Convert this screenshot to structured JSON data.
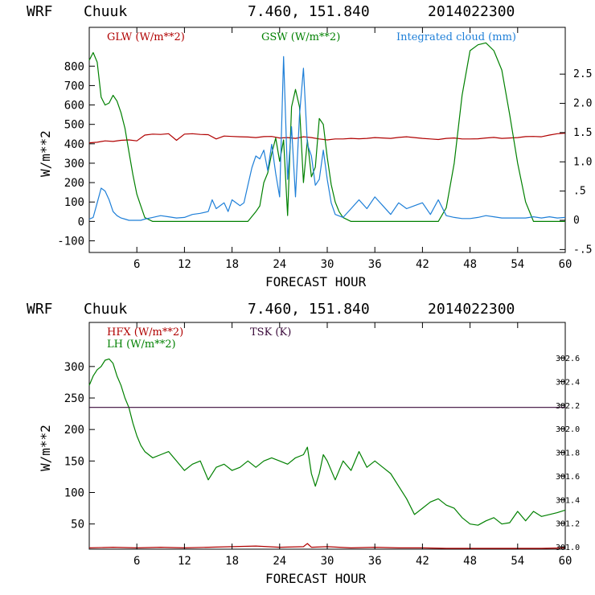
{
  "chart_data": [
    {
      "type": "line",
      "header": {
        "model": "WRF",
        "location": "Chuuk",
        "coords": "7.460, 151.840",
        "init": "2014022300"
      },
      "xlabel": "FORECAST HOUR",
      "ylabel": "W/m**2",
      "xlim": [
        0,
        60
      ],
      "ylim": [
        -160,
        1000
      ],
      "y2lim": [
        -0.55,
        3.3
      ],
      "xticks": [
        6,
        12,
        18,
        24,
        30,
        36,
        42,
        48,
        54,
        60
      ],
      "xtick_labels": [
        "6",
        "12",
        "18",
        "24",
        "30",
        "36",
        "42",
        "48",
        "54",
        "60"
      ],
      "yticks": [
        -100,
        0,
        100,
        200,
        300,
        400,
        500,
        600,
        700,
        800
      ],
      "ytick_labels": [
        "-100",
        "0",
        "100",
        "200",
        "300",
        "400",
        "500",
        "600",
        "700",
        "800"
      ],
      "y2ticks": [
        -0.5,
        0,
        0.5,
        1.0,
        1.5,
        2.0,
        2.5
      ],
      "y2tick_labels": [
        "-.5",
        "0",
        ".5",
        "1.0",
        "1.5",
        "2.0",
        "2.5"
      ],
      "legend": [
        "GLW (W/m**2)",
        "GSW (W/m**2)",
        "Integrated cloud (mm)"
      ],
      "series": [
        {
          "name": "GLW (W/m**2)",
          "color": "#b00000",
          "axis": "left",
          "x": [
            0,
            1,
            2,
            3,
            4,
            5,
            6,
            7,
            8,
            9,
            10,
            11,
            12,
            13,
            14,
            15,
            16,
            17,
            18,
            19,
            20,
            21,
            22,
            23,
            24,
            25,
            26,
            27,
            28,
            29,
            30,
            31,
            32,
            33,
            34,
            35,
            36,
            37,
            38,
            39,
            40,
            41,
            42,
            43,
            44,
            45,
            46,
            47,
            48,
            49,
            50,
            51,
            52,
            53,
            54,
            55,
            56,
            57,
            58,
            59,
            60
          ],
          "y": [
            405,
            408,
            415,
            412,
            418,
            420,
            415,
            445,
            450,
            448,
            452,
            418,
            450,
            452,
            448,
            447,
            425,
            440,
            438,
            436,
            435,
            432,
            437,
            438,
            430,
            432,
            428,
            436,
            432,
            425,
            420,
            425,
            425,
            428,
            426,
            428,
            432,
            430,
            428,
            433,
            436,
            432,
            428,
            425,
            422,
            428,
            430,
            425,
            425,
            426,
            430,
            433,
            428,
            430,
            432,
            437,
            438,
            436,
            445,
            452,
            455
          ]
        },
        {
          "name": "GSW (W/m**2)",
          "color": "#008000",
          "axis": "left",
          "x": [
            0,
            0.5,
            1,
            1.5,
            2,
            2.5,
            3,
            3.5,
            4,
            4.5,
            5,
            5.5,
            6,
            6.5,
            7,
            8,
            9,
            10,
            12,
            14,
            16,
            18,
            19,
            20,
            21,
            21.5,
            22,
            22.5,
            23,
            23.5,
            24,
            24.5,
            25,
            25.5,
            26,
            26.5,
            27,
            27.5,
            28,
            28.5,
            29,
            29.5,
            30,
            30.5,
            31,
            31.5,
            32,
            33,
            34,
            36,
            40,
            42,
            44,
            45,
            46,
            47,
            48,
            49,
            50,
            51,
            52,
            53,
            54,
            55,
            56,
            57,
            58,
            60
          ],
          "y": [
            830,
            870,
            820,
            640,
            600,
            610,
            650,
            620,
            560,
            480,
            360,
            240,
            140,
            80,
            20,
            0,
            0,
            0,
            0,
            0,
            0,
            0,
            0,
            0,
            50,
            80,
            200,
            250,
            350,
            430,
            310,
            420,
            30,
            590,
            680,
            590,
            200,
            420,
            230,
            280,
            530,
            500,
            330,
            190,
            100,
            50,
            20,
            0,
            0,
            0,
            0,
            0,
            0,
            70,
            300,
            650,
            880,
            910,
            920,
            880,
            780,
            550,
            300,
            100,
            0,
            0,
            0,
            0
          ]
        },
        {
          "name": "Integrated cloud (mm)",
          "color": "#1e7fd8",
          "axis": "right",
          "x": [
            0,
            0.5,
            1,
            1.5,
            2,
            2.5,
            3,
            3.5,
            4,
            4.5,
            5,
            5.5,
            6,
            6.5,
            7,
            8,
            9,
            10,
            11,
            12,
            13,
            14,
            15,
            15.5,
            16,
            17,
            17.5,
            18,
            19,
            19.5,
            20,
            20.5,
            21,
            21.5,
            22,
            22.5,
            23,
            23.5,
            24,
            24.5,
            25,
            25.5,
            26,
            26.5,
            27,
            27.5,
            28,
            28.5,
            29,
            29.5,
            30,
            30.5,
            31,
            32,
            33,
            34,
            35,
            36,
            37,
            38,
            39,
            40,
            41,
            42,
            43,
            44,
            45,
            46,
            47,
            48,
            49,
            50,
            51,
            52,
            53,
            54,
            55,
            56,
            57,
            58,
            59,
            60
          ],
          "y": [
            0.02,
            0.05,
            0.3,
            0.55,
            0.5,
            0.35,
            0.15,
            0.08,
            0.04,
            0.02,
            0.0,
            0.0,
            0.0,
            0.0,
            0.02,
            0.05,
            0.08,
            0.06,
            0.04,
            0.05,
            0.1,
            0.12,
            0.15,
            0.35,
            0.2,
            0.3,
            0.15,
            0.35,
            0.25,
            0.3,
            0.6,
            0.9,
            1.1,
            1.05,
            1.2,
            0.85,
            1.3,
            0.8,
            0.4,
            2.8,
            0.7,
            1.6,
            0.4,
            1.8,
            2.6,
            1.3,
            1.1,
            0.6,
            0.7,
            1.2,
            0.7,
            0.3,
            0.1,
            0.05,
            0.2,
            0.35,
            0.2,
            0.4,
            0.25,
            0.1,
            0.3,
            0.2,
            0.25,
            0.3,
            0.1,
            0.35,
            0.08,
            0.05,
            0.03,
            0.03,
            0.05,
            0.08,
            0.06,
            0.04,
            0.04,
            0.04,
            0.04,
            0.06,
            0.04,
            0.06,
            0.04,
            0.05
          ]
        }
      ]
    },
    {
      "type": "line",
      "header": {
        "model": "WRF",
        "location": "Chuuk",
        "coords": "7.460, 151.840",
        "init": "2014022300"
      },
      "xlabel": "FORECAST HOUR",
      "ylabel": "W/m**2",
      "xlim": [
        0,
        60
      ],
      "ylim": [
        10,
        370
      ],
      "y2lim": [
        300.98,
        302.9
      ],
      "xticks": [
        6,
        12,
        18,
        24,
        30,
        36,
        42,
        48,
        54,
        60
      ],
      "xtick_labels": [
        "6",
        "12",
        "18",
        "24",
        "30",
        "36",
        "42",
        "48",
        "54",
        "60"
      ],
      "yticks": [
        50,
        100,
        150,
        200,
        250,
        300
      ],
      "ytick_labels": [
        "50",
        "100",
        "150",
        "200",
        "250",
        "300"
      ],
      "y2ticks": [
        301.0,
        301.2,
        301.4,
        301.6,
        301.8,
        302.0,
        302.2,
        302.4,
        302.6
      ],
      "y2tick_labels": [
        "301.0",
        "301.2",
        "301.4",
        "301.6",
        "301.8",
        "302.0",
        "302.2",
        "302.4",
        "302.6"
      ],
      "legend": [
        "HFX (W/m**2)",
        "LH (W/m**2)",
        "TSK (K)"
      ],
      "series": [
        {
          "name": "HFX (W/m**2)",
          "color": "#b00000",
          "axis": "left",
          "x": [
            0,
            3,
            6,
            9,
            12,
            15,
            18,
            21,
            24,
            27,
            27.5,
            28,
            30,
            33,
            36,
            39,
            42,
            45,
            48,
            51,
            54,
            57,
            60
          ],
          "y": [
            12,
            13,
            12,
            13,
            12,
            13,
            14,
            15,
            13,
            14,
            19,
            13,
            14,
            12,
            13,
            12,
            12,
            11,
            11,
            11,
            11,
            11,
            12
          ]
        },
        {
          "name": "LH (W/m**2)",
          "color": "#008000",
          "axis": "left",
          "x": [
            0,
            0.5,
            1,
            1.5,
            2,
            2.5,
            3,
            3.5,
            4,
            4.5,
            5,
            5.5,
            6,
            6.5,
            7,
            8,
            9,
            10,
            11,
            12,
            13,
            14,
            15,
            16,
            17,
            18,
            19,
            20,
            21,
            22,
            23,
            24,
            25,
            26,
            27,
            27.5,
            28,
            28.5,
            29,
            29.5,
            30,
            31,
            32,
            33,
            34,
            35,
            36,
            37,
            38,
            39,
            40,
            41,
            42,
            43,
            44,
            45,
            46,
            47,
            48,
            49,
            50,
            51,
            52,
            53,
            54,
            55,
            56,
            57,
            58,
            59,
            60
          ],
          "y": [
            270,
            285,
            295,
            300,
            310,
            312,
            305,
            285,
            270,
            250,
            235,
            210,
            190,
            175,
            165,
            155,
            160,
            165,
            150,
            135,
            145,
            150,
            120,
            140,
            145,
            135,
            140,
            150,
            140,
            150,
            155,
            150,
            145,
            155,
            160,
            172,
            130,
            110,
            130,
            160,
            150,
            120,
            150,
            135,
            165,
            140,
            150,
            140,
            130,
            110,
            90,
            65,
            75,
            85,
            90,
            80,
            75,
            60,
            50,
            48,
            55,
            60,
            50,
            52,
            70,
            55,
            70,
            62,
            65,
            68,
            72
          ]
        },
        {
          "name": "TSK (K)",
          "color": "#3a0a3a",
          "axis": "right",
          "x": [
            0,
            60
          ],
          "y": [
            302.18,
            302.18
          ]
        }
      ]
    }
  ]
}
